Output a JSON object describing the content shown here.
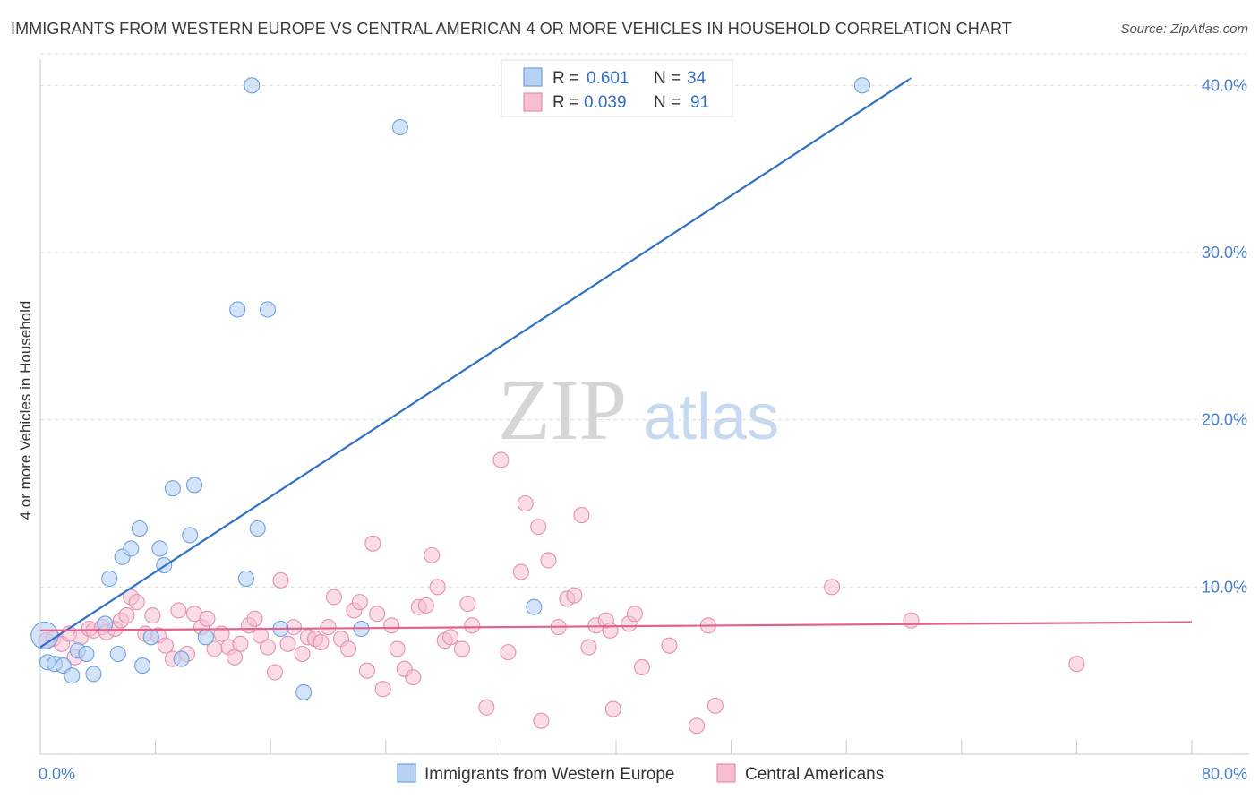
{
  "header": {
    "title": "IMMIGRANTS FROM WESTERN EUROPE VS CENTRAL AMERICAN 4 OR MORE VEHICLES IN HOUSEHOLD CORRELATION CHART",
    "source": "Source: ZipAtlas.com"
  },
  "watermark": {
    "zip": "ZIP",
    "atlas": "atlas"
  },
  "colors": {
    "blue": "#2f6fc6",
    "blue_fill": "#b8d2f3",
    "pink": "#e0628f",
    "pink_fill": "#f6bfd1",
    "axis_text": "#4a7fd0",
    "grid": "#d9d9d9"
  },
  "chart_data": {
    "type": "scatter",
    "title": "IMMIGRANTS FROM WESTERN EUROPE VS CENTRAL AMERICAN 4 OR MORE VEHICLES IN HOUSEHOLD CORRELATION CHART",
    "xlabel": "",
    "ylabel": "4 or more Vehicles in Household",
    "xlim": [
      0,
      80
    ],
    "ylim": [
      0,
      42
    ],
    "x_tick_labels": [
      "0.0%",
      "80.0%"
    ],
    "y_ticks": [
      10,
      20,
      30,
      40
    ],
    "y_tick_labels": [
      "10.0%",
      "20.0%",
      "30.0%",
      "40.0%"
    ],
    "legend": {
      "position": "top-center",
      "entries": [
        {
          "r_label": "R =",
          "r_value": "0.601",
          "n_label": "N =",
          "n_value": "34"
        },
        {
          "r_label": "R =",
          "r_value": "0.039",
          "n_label": "N =",
          "n_value": "91"
        }
      ]
    },
    "bottom_legend": [
      "Immigrants from Western Europe",
      "Central Americans"
    ],
    "series": [
      {
        "name": "Immigrants from Western Europe",
        "color": "#2f6fc6",
        "trend": {
          "x0": 0.0,
          "y0": 6.4,
          "x1": 60.6,
          "y1": 40.5,
          "solid_until_x": 60.3
        },
        "points": [
          [
            0.3,
            7.1
          ],
          [
            0.5,
            5.5
          ],
          [
            1.0,
            5.4
          ],
          [
            1.6,
            5.3
          ],
          [
            2.2,
            4.7
          ],
          [
            2.6,
            6.2
          ],
          [
            3.2,
            6.0
          ],
          [
            3.7,
            4.8
          ],
          [
            4.5,
            7.8
          ],
          [
            4.8,
            10.5
          ],
          [
            5.4,
            6.0
          ],
          [
            5.7,
            11.8
          ],
          [
            6.3,
            12.3
          ],
          [
            6.9,
            13.5
          ],
          [
            7.1,
            5.3
          ],
          [
            7.7,
            7.0
          ],
          [
            8.3,
            12.3
          ],
          [
            8.6,
            11.3
          ],
          [
            9.2,
            15.9
          ],
          [
            9.8,
            5.7
          ],
          [
            10.4,
            13.1
          ],
          [
            10.7,
            16.1
          ],
          [
            11.5,
            7.0
          ],
          [
            13.7,
            26.6
          ],
          [
            14.3,
            10.5
          ],
          [
            14.7,
            40.0
          ],
          [
            15.1,
            13.5
          ],
          [
            15.8,
            26.6
          ],
          [
            16.7,
            7.5
          ],
          [
            18.3,
            3.7
          ],
          [
            22.3,
            7.5
          ],
          [
            25.0,
            37.5
          ],
          [
            34.3,
            8.8
          ],
          [
            57.1,
            40.0
          ]
        ]
      },
      {
        "name": "Central Americans",
        "color": "#e0628f",
        "trend": {
          "x0": 0.0,
          "y0": 7.4,
          "x1": 80.0,
          "y1": 7.9
        },
        "points": [
          [
            0.4,
            6.8
          ],
          [
            0.9,
            6.9
          ],
          [
            1.5,
            6.6
          ],
          [
            2.0,
            7.2
          ],
          [
            2.4,
            5.8
          ],
          [
            2.8,
            7.0
          ],
          [
            3.4,
            7.5
          ],
          [
            3.7,
            7.4
          ],
          [
            4.3,
            7.6
          ],
          [
            4.6,
            7.3
          ],
          [
            5.2,
            7.5
          ],
          [
            5.6,
            8.0
          ],
          [
            6.0,
            8.3
          ],
          [
            6.3,
            9.4
          ],
          [
            6.7,
            9.1
          ],
          [
            7.3,
            7.2
          ],
          [
            7.8,
            8.3
          ],
          [
            8.2,
            7.1
          ],
          [
            8.7,
            6.5
          ],
          [
            9.2,
            5.7
          ],
          [
            9.6,
            8.6
          ],
          [
            10.2,
            6.0
          ],
          [
            10.7,
            8.4
          ],
          [
            11.2,
            7.6
          ],
          [
            11.6,
            8.1
          ],
          [
            12.1,
            6.3
          ],
          [
            12.6,
            7.2
          ],
          [
            13.1,
            6.4
          ],
          [
            13.5,
            5.8
          ],
          [
            13.9,
            6.6
          ],
          [
            14.5,
            7.7
          ],
          [
            14.9,
            8.1
          ],
          [
            15.3,
            7.1
          ],
          [
            15.8,
            6.4
          ],
          [
            16.3,
            4.9
          ],
          [
            16.7,
            10.4
          ],
          [
            17.2,
            6.6
          ],
          [
            17.6,
            7.6
          ],
          [
            18.2,
            6.0
          ],
          [
            18.6,
            7.0
          ],
          [
            19.1,
            6.9
          ],
          [
            19.5,
            6.7
          ],
          [
            20.0,
            7.6
          ],
          [
            20.4,
            9.4
          ],
          [
            20.9,
            6.9
          ],
          [
            21.4,
            6.3
          ],
          [
            21.8,
            8.6
          ],
          [
            22.2,
            9.1
          ],
          [
            22.7,
            5.0
          ],
          [
            23.1,
            12.6
          ],
          [
            23.4,
            8.4
          ],
          [
            23.8,
            3.9
          ],
          [
            24.4,
            7.7
          ],
          [
            24.8,
            6.3
          ],
          [
            25.3,
            5.1
          ],
          [
            25.9,
            4.6
          ],
          [
            26.3,
            8.8
          ],
          [
            26.8,
            8.9
          ],
          [
            27.2,
            11.9
          ],
          [
            27.6,
            10.0
          ],
          [
            28.1,
            6.8
          ],
          [
            28.5,
            7.0
          ],
          [
            29.3,
            6.3
          ],
          [
            29.7,
            9.0
          ],
          [
            30.0,
            7.7
          ],
          [
            31.0,
            2.8
          ],
          [
            32.0,
            17.6
          ],
          [
            32.5,
            6.1
          ],
          [
            33.4,
            10.9
          ],
          [
            33.7,
            15.0
          ],
          [
            34.6,
            13.6
          ],
          [
            34.8,
            2.0
          ],
          [
            35.3,
            11.6
          ],
          [
            36.0,
            7.6
          ],
          [
            36.6,
            9.3
          ],
          [
            37.1,
            9.5
          ],
          [
            37.6,
            14.3
          ],
          [
            38.1,
            6.4
          ],
          [
            38.6,
            7.7
          ],
          [
            39.3,
            8.0
          ],
          [
            39.6,
            7.4
          ],
          [
            39.8,
            2.7
          ],
          [
            40.9,
            7.8
          ],
          [
            41.3,
            8.4
          ],
          [
            41.8,
            5.2
          ],
          [
            43.7,
            6.5
          ],
          [
            45.6,
            1.7
          ],
          [
            46.4,
            7.7
          ],
          [
            46.9,
            2.9
          ],
          [
            55.0,
            10.0
          ],
          [
            72.0,
            5.4
          ]
        ],
        "extra_points": [
          [
            60.5,
            8.0
          ]
        ]
      }
    ]
  }
}
